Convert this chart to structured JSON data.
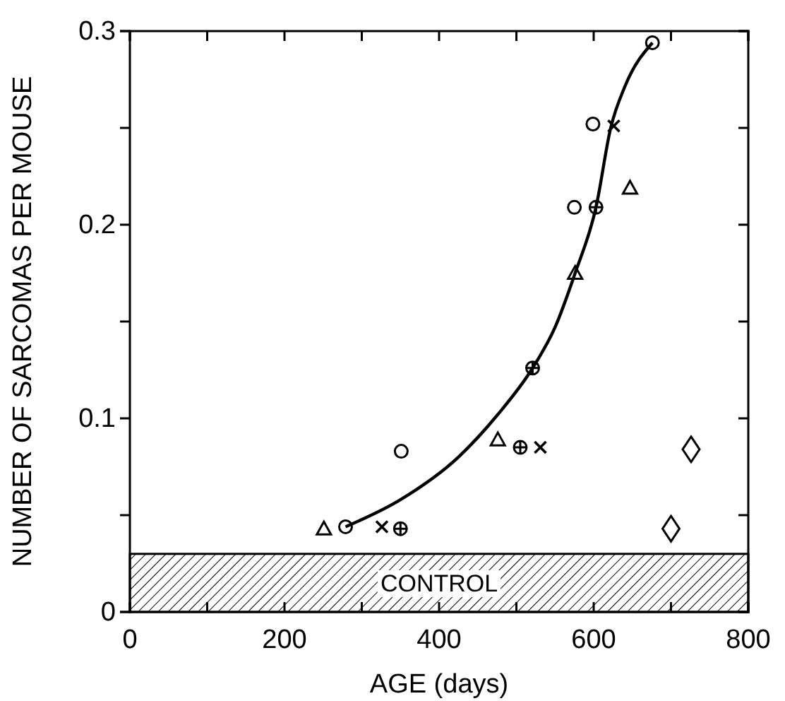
{
  "chart_data": {
    "type": "scatter",
    "xlabel": "AGE (days)",
    "ylabel": "NUMBER OF SARCOMAS PER MOUSE",
    "xlim": [
      0,
      800
    ],
    "ylim": [
      0,
      0.3
    ],
    "xticks": [
      0,
      {
        "value": 100,
        "label": null
      },
      200,
      {
        "value": 300,
        "label": null
      },
      400,
      {
        "value": 500,
        "label": null
      },
      600,
      {
        "value": 700,
        "label": null
      },
      800
    ],
    "yticks": [
      0,
      {
        "value": 0.05,
        "label": null
      },
      0.1,
      {
        "value": 0.15,
        "label": null
      },
      0.2,
      {
        "value": 0.25,
        "label": null
      },
      0.3
    ],
    "bands": [
      {
        "axis": "y",
        "from": 0,
        "to": 0.03,
        "label": "CONTROL"
      }
    ],
    "series": [
      {
        "marker": "circle",
        "color": "#000000",
        "x": [
          279,
          351,
          575,
          599,
          676
        ],
        "values": [
          0.044,
          0.083,
          0.209,
          0.252,
          0.294
        ]
      },
      {
        "marker": "triangle",
        "color": "#000000",
        "x": [
          251,
          476,
          576,
          647
        ],
        "values": [
          0.043,
          0.089,
          0.175,
          0.219
        ]
      },
      {
        "marker": "cross",
        "color": "#000000",
        "x": [
          326,
          531,
          626
        ],
        "values": [
          0.044,
          0.085,
          0.251
        ]
      },
      {
        "color": "#000000",
        "x": [
          350,
          505,
          521,
          603
        ],
        "values": [
          0.043,
          0.085,
          0.126,
          0.209
        ]
      },
      {
        "marker": "diamond",
        "color": "#000000",
        "x": [
          700,
          726
        ],
        "values": [
          0.043,
          0.084
        ]
      },
      {
        "type": "line",
        "marker": "none",
        "color": "#000000",
        "x": [
          279,
          350,
          425,
          476,
          521,
          550,
          576,
          603,
          622,
          641,
          676
        ],
        "values": [
          0.044,
          0.058,
          0.08,
          0.102,
          0.126,
          0.147,
          0.175,
          0.209,
          0.25,
          0.272,
          0.294
        ]
      }
    ]
  }
}
